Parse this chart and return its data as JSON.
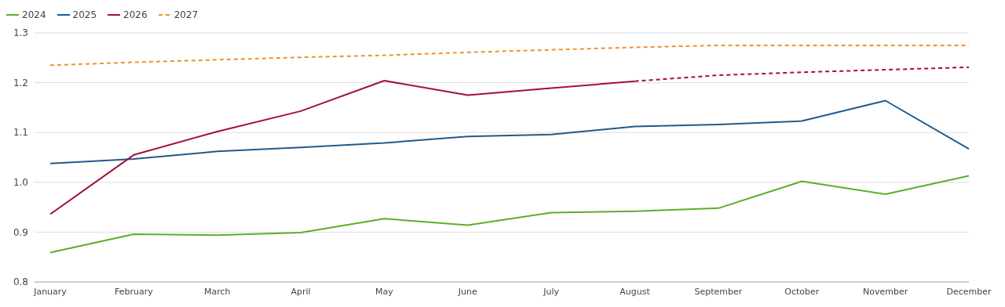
{
  "chart_data": {
    "type": "line",
    "categories": [
      "January",
      "February",
      "March",
      "April",
      "May",
      "June",
      "July",
      "August",
      "September",
      "October",
      "November",
      "December"
    ],
    "series": [
      {
        "name": "2024",
        "color": "#5aaf2a",
        "values": [
          0.859,
          0.896,
          0.894,
          0.899,
          0.927,
          0.914,
          0.939,
          0.942,
          0.948,
          1.002,
          0.976,
          1.013
        ]
      },
      {
        "name": "2025",
        "color": "#1f5a8c",
        "values": [
          1.038,
          1.047,
          1.062,
          1.07,
          1.079,
          1.092,
          1.096,
          1.112,
          1.116,
          1.123,
          1.164,
          1.067
        ]
      },
      {
        "name": "2026",
        "color": "#a50d3e",
        "values": [
          0.936,
          1.055,
          1.102,
          1.143,
          1.204,
          1.175,
          1.189,
          1.203,
          null,
          null,
          null,
          null
        ]
      },
      {
        "color": "#a50d3e",
        "line_style": "dashed",
        "values": [
          null,
          null,
          null,
          null,
          null,
          null,
          null,
          1.203,
          1.215,
          1.221,
          1.226,
          1.231
        ]
      },
      {
        "name": "2027",
        "color": "#f0922b",
        "line_style": "dashed",
        "values": [
          1.235,
          1.241,
          1.246,
          1.251,
          1.255,
          1.261,
          1.266,
          1.271,
          1.275,
          1.275,
          1.275,
          1.275
        ]
      }
    ],
    "ylim": [
      0.8,
      1.3
    ],
    "yticks": [
      {
        "value": 0.8,
        "label": "0.8"
      },
      {
        "value": 0.9,
        "label": "0.9"
      },
      {
        "value": 1.0,
        "label": "1.0"
      },
      {
        "value": 1.1,
        "label": "1.1"
      },
      {
        "value": 1.2,
        "label": "1.2"
      },
      {
        "value": 1.3,
        "label": "1.3"
      }
    ],
    "grid": "y",
    "legend": "top left",
    "marker": "none",
    "line_style": "solid"
  }
}
